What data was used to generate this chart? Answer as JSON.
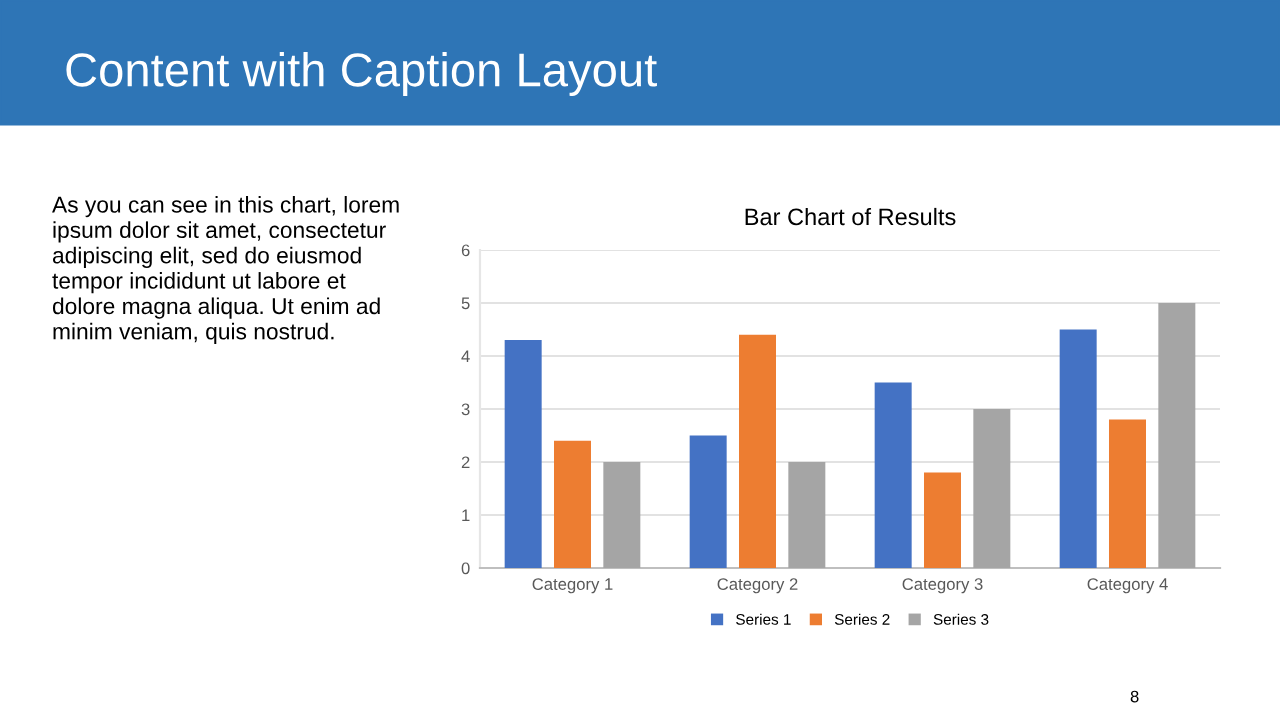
{
  "chart_data": {
    "type": "bar",
    "title": "Bar Chart of Results",
    "categories": [
      "Category 1",
      "Category 2",
      "Category 3",
      "Category 4"
    ],
    "series": [
      {
        "name": "Series 1",
        "color": "#4472c4",
        "values": [
          4.3,
          2.5,
          3.5,
          4.5
        ]
      },
      {
        "name": "Series 2",
        "color": "#ed7d31",
        "values": [
          2.4,
          4.4,
          1.8,
          2.8
        ]
      },
      {
        "name": "Series 3",
        "color": "#a5a5a5",
        "values": [
          2,
          2,
          3,
          5
        ]
      }
    ],
    "ylim": [
      0,
      6
    ],
    "yticks": [
      0,
      1,
      2,
      3,
      4,
      5,
      6
    ],
    "grid": "y",
    "legend": "bottom",
    "annotations": [
      "Content with Caption Layout",
      "As you can see in this chart, lorem\nipsum dolor sit amet, consectetur\nadipiscing elit, sed do eiusmod\ntempor incididunt ut labore et\ndolore magna aliqua. Ut enim ad\nminim veniam, quis nostrud.",
      "8"
    ]
  }
}
